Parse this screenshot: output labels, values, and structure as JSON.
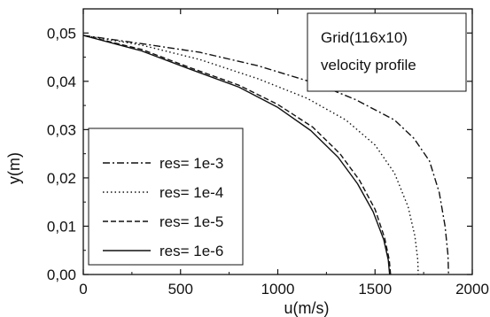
{
  "chart_data": {
    "type": "line",
    "xlabel": "u(m/s)",
    "ylabel": "y(m)",
    "xlim": [
      0,
      2000
    ],
    "ylim": [
      0,
      0.055
    ],
    "x_ticks": [
      0,
      500,
      1000,
      1500,
      2000
    ],
    "x_tick_labels": [
      "0",
      "500",
      "1000",
      "1500",
      "2000"
    ],
    "y_ticks": [
      0.0,
      0.01,
      0.02,
      0.03,
      0.04,
      0.05
    ],
    "y_tick_labels": [
      "0,00",
      "0,01",
      "0,02",
      "0,03",
      "0,04",
      "0,05"
    ],
    "grid": false,
    "legend_position": "bottom-left",
    "annotation_lines": [
      "Grid(116x10)",
      "velocity profile"
    ],
    "series": [
      {
        "name": "res= 1e-3",
        "dash": "dashdot",
        "points": [
          [
            0,
            0.0495
          ],
          [
            300,
            0.0478
          ],
          [
            600,
            0.046
          ],
          [
            900,
            0.0432
          ],
          [
            1200,
            0.0395
          ],
          [
            1400,
            0.0362
          ],
          [
            1600,
            0.032
          ],
          [
            1700,
            0.0282
          ],
          [
            1780,
            0.0235
          ],
          [
            1830,
            0.017
          ],
          [
            1860,
            0.01
          ],
          [
            1875,
            0.004
          ],
          [
            1878,
            0.0
          ]
        ]
      },
      {
        "name": "res= 1e-4",
        "dash": "dotted",
        "points": [
          [
            0,
            0.0495
          ],
          [
            300,
            0.0475
          ],
          [
            600,
            0.0445
          ],
          [
            900,
            0.0405
          ],
          [
            1150,
            0.0365
          ],
          [
            1350,
            0.032
          ],
          [
            1500,
            0.0268
          ],
          [
            1600,
            0.021
          ],
          [
            1670,
            0.014
          ],
          [
            1705,
            0.008
          ],
          [
            1720,
            0.003
          ],
          [
            1722,
            0.0
          ]
        ]
      },
      {
        "name": "res= 1e-5",
        "dash": "dashed",
        "points": [
          [
            0,
            0.0495
          ],
          [
            300,
            0.0466
          ],
          [
            550,
            0.0428
          ],
          [
            800,
            0.0392
          ],
          [
            1000,
            0.0352
          ],
          [
            1180,
            0.0305
          ],
          [
            1320,
            0.025
          ],
          [
            1420,
            0.0195
          ],
          [
            1500,
            0.0135
          ],
          [
            1550,
            0.0075
          ],
          [
            1573,
            0.003
          ],
          [
            1580,
            0.0
          ]
        ]
      },
      {
        "name": "res= 1e-6",
        "dash": "solid",
        "points": [
          [
            0,
            0.0495
          ],
          [
            300,
            0.0463
          ],
          [
            550,
            0.0425
          ],
          [
            800,
            0.0388
          ],
          [
            1000,
            0.0346
          ],
          [
            1170,
            0.0298
          ],
          [
            1310,
            0.0243
          ],
          [
            1410,
            0.0188
          ],
          [
            1490,
            0.013
          ],
          [
            1545,
            0.0072
          ],
          [
            1568,
            0.003
          ],
          [
            1575,
            0.0
          ]
        ]
      }
    ]
  }
}
